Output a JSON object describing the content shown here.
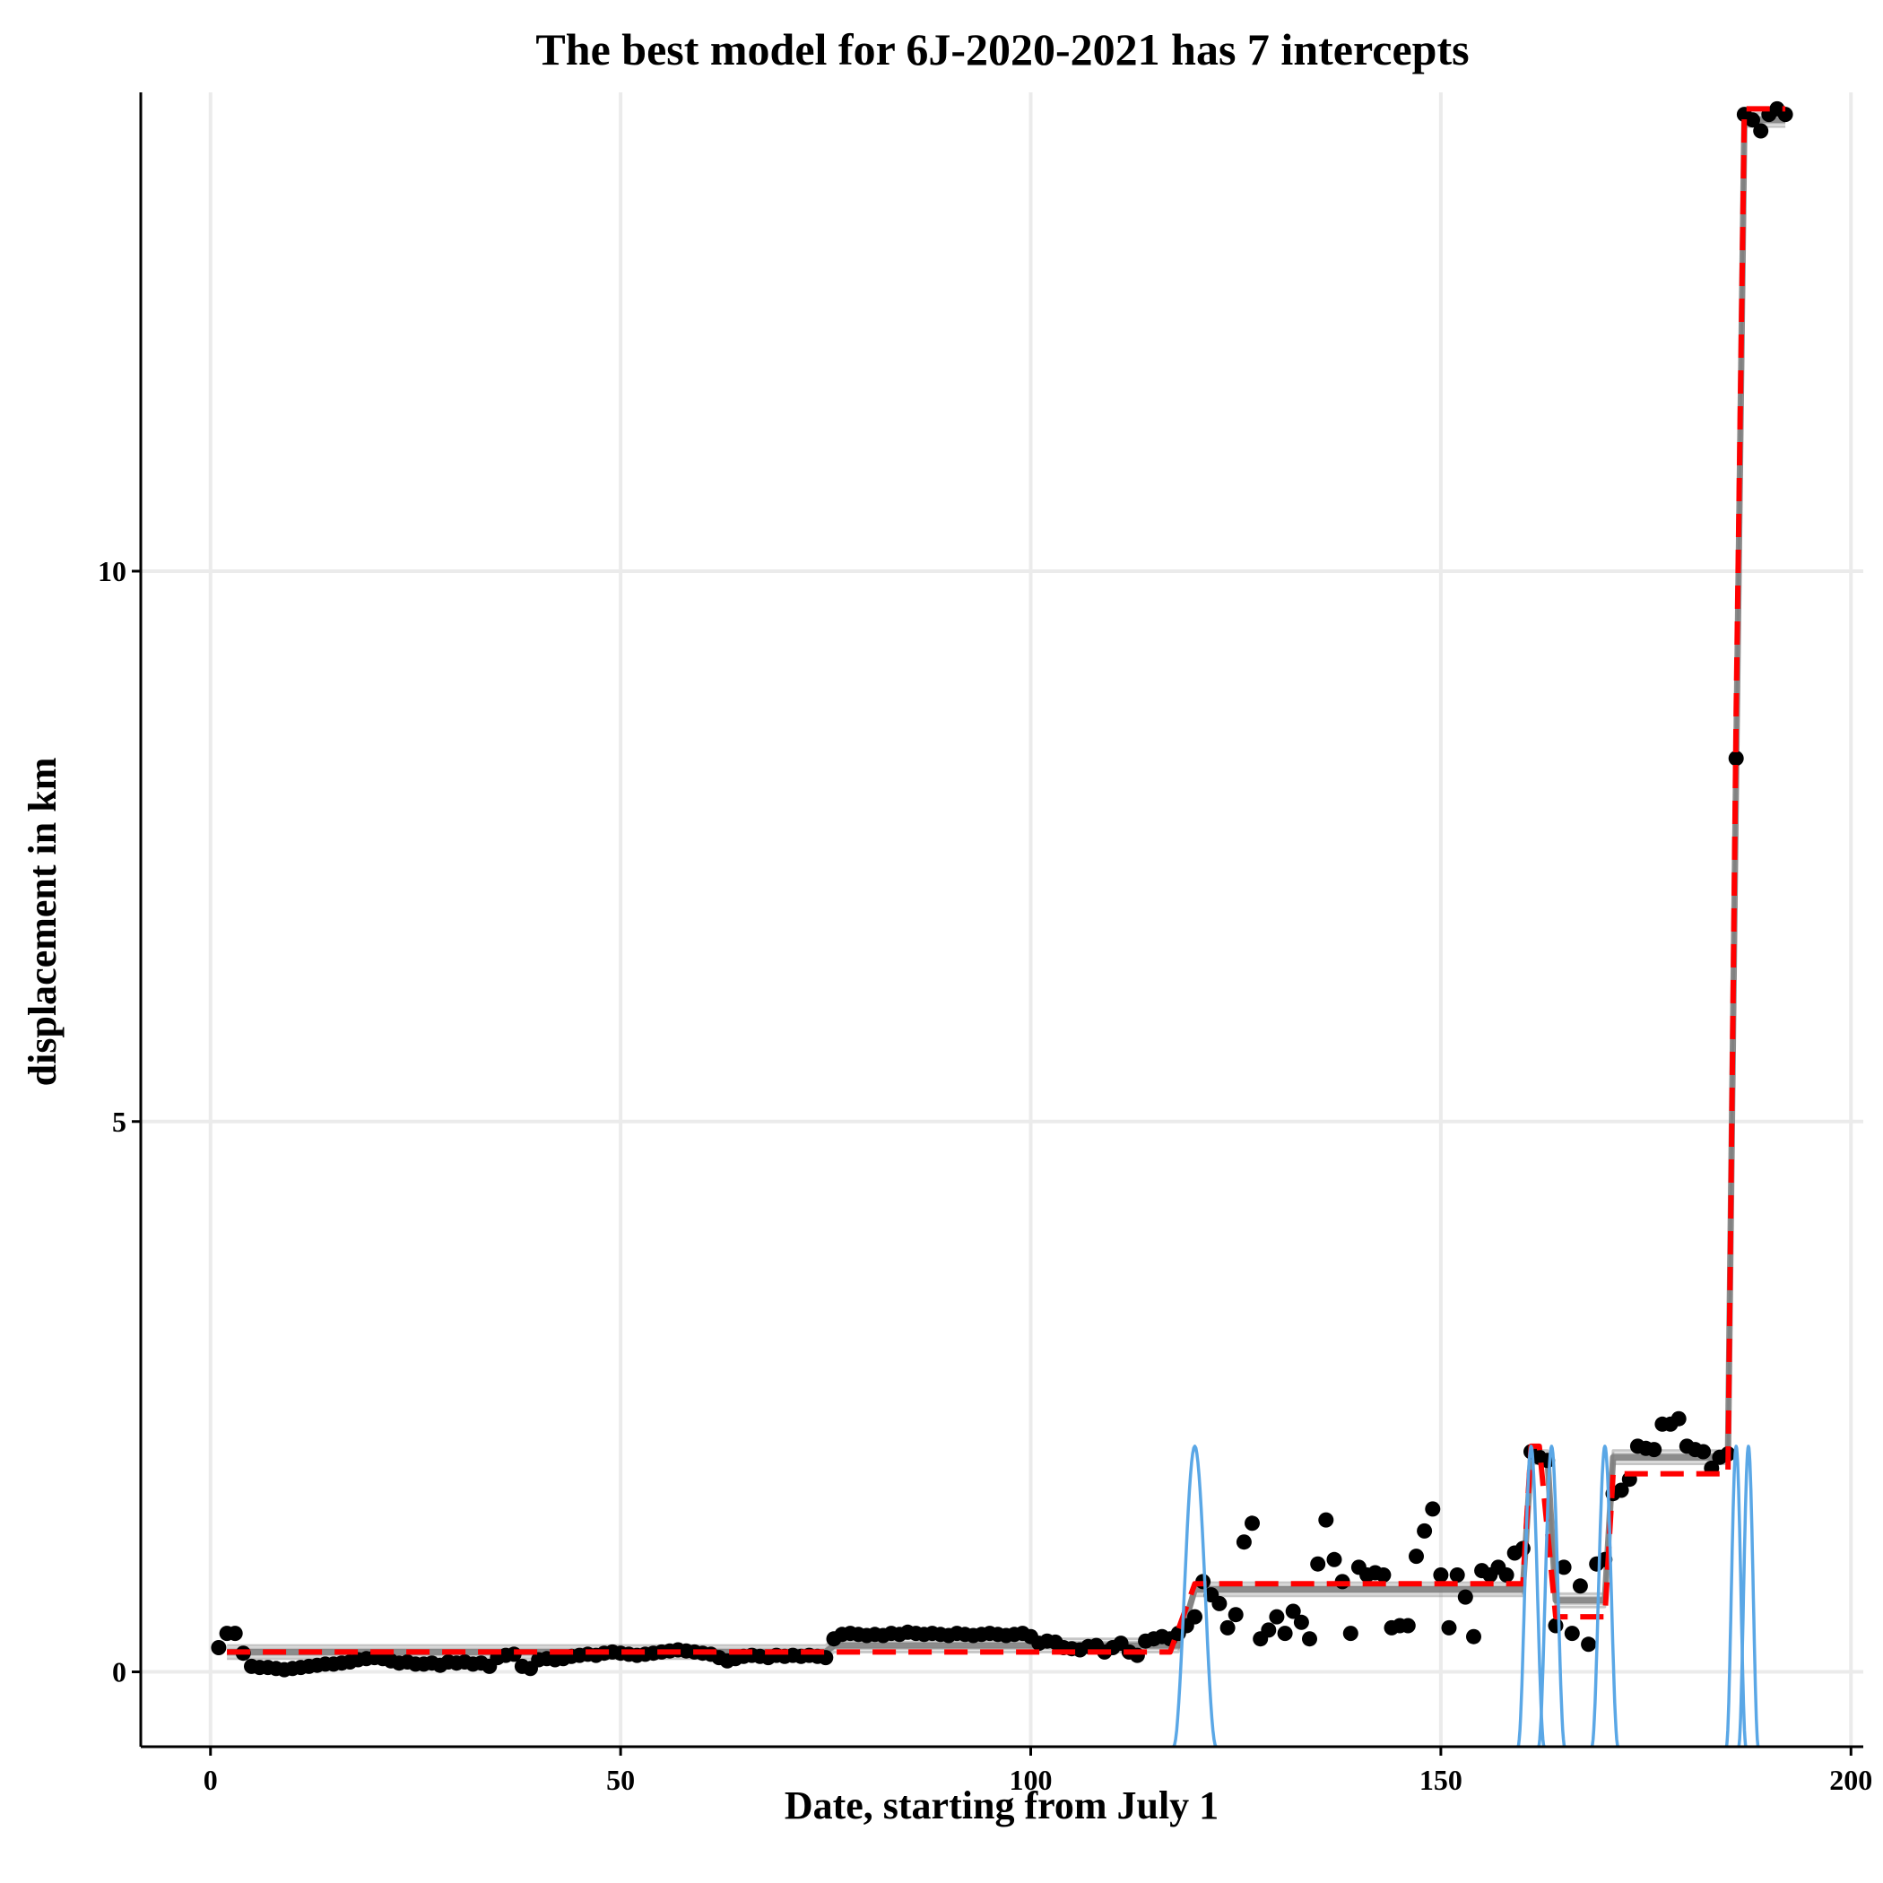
{
  "chart_data": {
    "type": "scatter",
    "title": "The best model for 6J-2020-2021 has 7 intercepts",
    "xlabel": "Date, starting from July 1",
    "ylabel": "displacement in km",
    "xlim": [
      -8.5,
      201.5
    ],
    "ylim": [
      -0.68,
      14.35
    ],
    "x_ticks": [
      0,
      50,
      100,
      150,
      200
    ],
    "y_ticks": [
      0,
      5,
      10
    ],
    "grid": true,
    "colors": {
      "points": "#000000",
      "best_model": "#ff0000",
      "candidate_models": "#808080",
      "changepoint_density": "#5aa7e6",
      "grid": "#ebebeb"
    },
    "series": [
      {
        "kind": "points",
        "points": [
          [
            1,
            0.22
          ],
          [
            2,
            0.35
          ],
          [
            3,
            0.35
          ],
          [
            4,
            0.17
          ],
          [
            5,
            0.05
          ],
          [
            6,
            0.04
          ],
          [
            7,
            0.04
          ],
          [
            8,
            0.03
          ],
          [
            9,
            0.02
          ],
          [
            10,
            0.03
          ],
          [
            11,
            0.04
          ],
          [
            12,
            0.05
          ],
          [
            13,
            0.06
          ],
          [
            14,
            0.07
          ],
          [
            15,
            0.07
          ],
          [
            16,
            0.08
          ],
          [
            17,
            0.09
          ],
          [
            18,
            0.11
          ],
          [
            19,
            0.12
          ],
          [
            20,
            0.13
          ],
          [
            21,
            0.12
          ],
          [
            22,
            0.1
          ],
          [
            23,
            0.08
          ],
          [
            24,
            0.09
          ],
          [
            25,
            0.07
          ],
          [
            26,
            0.07
          ],
          [
            27,
            0.08
          ],
          [
            28,
            0.06
          ],
          [
            29,
            0.09
          ],
          [
            30,
            0.08
          ],
          [
            31,
            0.09
          ],
          [
            32,
            0.07
          ],
          [
            33,
            0.08
          ],
          [
            34,
            0.05
          ],
          [
            35,
            0.13
          ],
          [
            36,
            0.15
          ],
          [
            37,
            0.16
          ],
          [
            38,
            0.05
          ],
          [
            39,
            0.03
          ],
          [
            40,
            0.11
          ],
          [
            41,
            0.12
          ],
          [
            42,
            0.11
          ],
          [
            43,
            0.12
          ],
          [
            44,
            0.14
          ],
          [
            45,
            0.15
          ],
          [
            46,
            0.16
          ],
          [
            47,
            0.15
          ],
          [
            48,
            0.17
          ],
          [
            49,
            0.18
          ],
          [
            50,
            0.17
          ],
          [
            51,
            0.16
          ],
          [
            52,
            0.15
          ],
          [
            53,
            0.16
          ],
          [
            54,
            0.17
          ],
          [
            55,
            0.18
          ],
          [
            56,
            0.19
          ],
          [
            57,
            0.2
          ],
          [
            58,
            0.19
          ],
          [
            59,
            0.18
          ],
          [
            60,
            0.17
          ],
          [
            61,
            0.16
          ],
          [
            62,
            0.13
          ],
          [
            63,
            0.1
          ],
          [
            64,
            0.12
          ],
          [
            65,
            0.14
          ],
          [
            66,
            0.15
          ],
          [
            67,
            0.14
          ],
          [
            68,
            0.13
          ],
          [
            69,
            0.15
          ],
          [
            70,
            0.14
          ],
          [
            71,
            0.15
          ],
          [
            72,
            0.14
          ],
          [
            73,
            0.15
          ],
          [
            74,
            0.14
          ],
          [
            75,
            0.13
          ],
          [
            76,
            0.3
          ],
          [
            77,
            0.34
          ],
          [
            78,
            0.35
          ],
          [
            79,
            0.34
          ],
          [
            80,
            0.33
          ],
          [
            81,
            0.34
          ],
          [
            82,
            0.33
          ],
          [
            83,
            0.35
          ],
          [
            84,
            0.34
          ],
          [
            85,
            0.36
          ],
          [
            86,
            0.35
          ],
          [
            87,
            0.34
          ],
          [
            88,
            0.35
          ],
          [
            89,
            0.34
          ],
          [
            90,
            0.33
          ],
          [
            91,
            0.35
          ],
          [
            92,
            0.34
          ],
          [
            93,
            0.33
          ],
          [
            94,
            0.34
          ],
          [
            95,
            0.35
          ],
          [
            96,
            0.34
          ],
          [
            97,
            0.33
          ],
          [
            98,
            0.34
          ],
          [
            99,
            0.35
          ],
          [
            100,
            0.32
          ],
          [
            101,
            0.26
          ],
          [
            102,
            0.28
          ],
          [
            103,
            0.27
          ],
          [
            104,
            0.22
          ],
          [
            105,
            0.21
          ],
          [
            106,
            0.2
          ],
          [
            107,
            0.23
          ],
          [
            108,
            0.24
          ],
          [
            109,
            0.18
          ],
          [
            110,
            0.22
          ],
          [
            111,
            0.26
          ],
          [
            112,
            0.18
          ],
          [
            113,
            0.15
          ],
          [
            114,
            0.28
          ],
          [
            115,
            0.3
          ],
          [
            116,
            0.32
          ],
          [
            117,
            0.3
          ],
          [
            118,
            0.35
          ],
          [
            119,
            0.42
          ],
          [
            120,
            0.5
          ],
          [
            121,
            0.82
          ],
          [
            122,
            0.7
          ],
          [
            123,
            0.62
          ],
          [
            124,
            0.4
          ],
          [
            125,
            0.52
          ],
          [
            126,
            1.18
          ],
          [
            127,
            1.35
          ],
          [
            128,
            0.3
          ],
          [
            129,
            0.38
          ],
          [
            130,
            0.5
          ],
          [
            131,
            0.35
          ],
          [
            132,
            0.55
          ],
          [
            133,
            0.45
          ],
          [
            134,
            0.3
          ],
          [
            135,
            0.98
          ],
          [
            136,
            1.38
          ],
          [
            137,
            1.02
          ],
          [
            138,
            0.82
          ],
          [
            139,
            0.35
          ],
          [
            140,
            0.95
          ],
          [
            141,
            0.88
          ],
          [
            142,
            0.9
          ],
          [
            143,
            0.88
          ],
          [
            144,
            0.4
          ],
          [
            145,
            0.42
          ],
          [
            146,
            0.42
          ],
          [
            147,
            1.05
          ],
          [
            148,
            1.28
          ],
          [
            149,
            1.48
          ],
          [
            150,
            0.88
          ],
          [
            151,
            0.4
          ],
          [
            152,
            0.88
          ],
          [
            153,
            0.68
          ],
          [
            154,
            0.32
          ],
          [
            155,
            0.92
          ],
          [
            156,
            0.88
          ],
          [
            157,
            0.95
          ],
          [
            158,
            0.88
          ],
          [
            159,
            1.08
          ],
          [
            160,
            1.12
          ],
          [
            161,
            2.0
          ],
          [
            162,
            1.95
          ],
          [
            163,
            1.92
          ],
          [
            164,
            0.42
          ],
          [
            165,
            0.95
          ],
          [
            166,
            0.35
          ],
          [
            167,
            0.78
          ],
          [
            168,
            0.25
          ],
          [
            169,
            0.98
          ],
          [
            170,
            1.02
          ],
          [
            171,
            1.62
          ],
          [
            172,
            1.65
          ],
          [
            173,
            1.75
          ],
          [
            174,
            2.05
          ],
          [
            175,
            2.03
          ],
          [
            176,
            2.02
          ],
          [
            177,
            2.25
          ],
          [
            178,
            2.25
          ],
          [
            179,
            2.3
          ],
          [
            180,
            2.05
          ],
          [
            181,
            2.02
          ],
          [
            182,
            2.0
          ],
          [
            183,
            1.85
          ],
          [
            184,
            1.95
          ],
          [
            185,
            1.98
          ],
          [
            186,
            8.3
          ],
          [
            187,
            14.15
          ],
          [
            188,
            14.1
          ],
          [
            189,
            14.0
          ],
          [
            190,
            14.15
          ],
          [
            191,
            14.2
          ],
          [
            192,
            14.15
          ]
        ]
      },
      {
        "kind": "best_model",
        "name": "",
        "step_x": [
          2,
          117,
          120,
          160,
          161,
          162,
          164,
          170,
          171,
          185,
          186,
          187,
          192
        ],
        "step_y": [
          0.18,
          0.18,
          0.8,
          0.8,
          2.05,
          2.05,
          0.5,
          0.5,
          1.8,
          1.8,
          8.7,
          14.2,
          14.2
        ]
      },
      {
        "kind": "candidate_models",
        "name": "",
        "step_x": [
          2,
          75,
          76,
          118,
          120,
          160,
          161,
          163,
          164,
          170,
          171,
          185,
          186,
          187,
          192
        ],
        "step_y": [
          0.18,
          0.18,
          0.24,
          0.24,
          0.75,
          0.75,
          1.95,
          1.95,
          0.65,
          0.65,
          1.95,
          1.95,
          8.2,
          14.1,
          14.1
        ]
      },
      {
        "kind": "changepoint_density",
        "name": "",
        "peaks": [
          {
            "center": 120,
            "width": 2.6,
            "height": 2.05
          },
          {
            "center": 161,
            "width": 1.6,
            "height": 2.05
          },
          {
            "center": 163.5,
            "width": 1.6,
            "height": 2.05
          },
          {
            "center": 170,
            "width": 1.6,
            "height": 2.05
          },
          {
            "center": 186,
            "width": 1.2,
            "height": 2.05
          },
          {
            "center": 187.5,
            "width": 1.2,
            "height": 2.05
          }
        ],
        "baseline": -0.68
      }
    ]
  }
}
